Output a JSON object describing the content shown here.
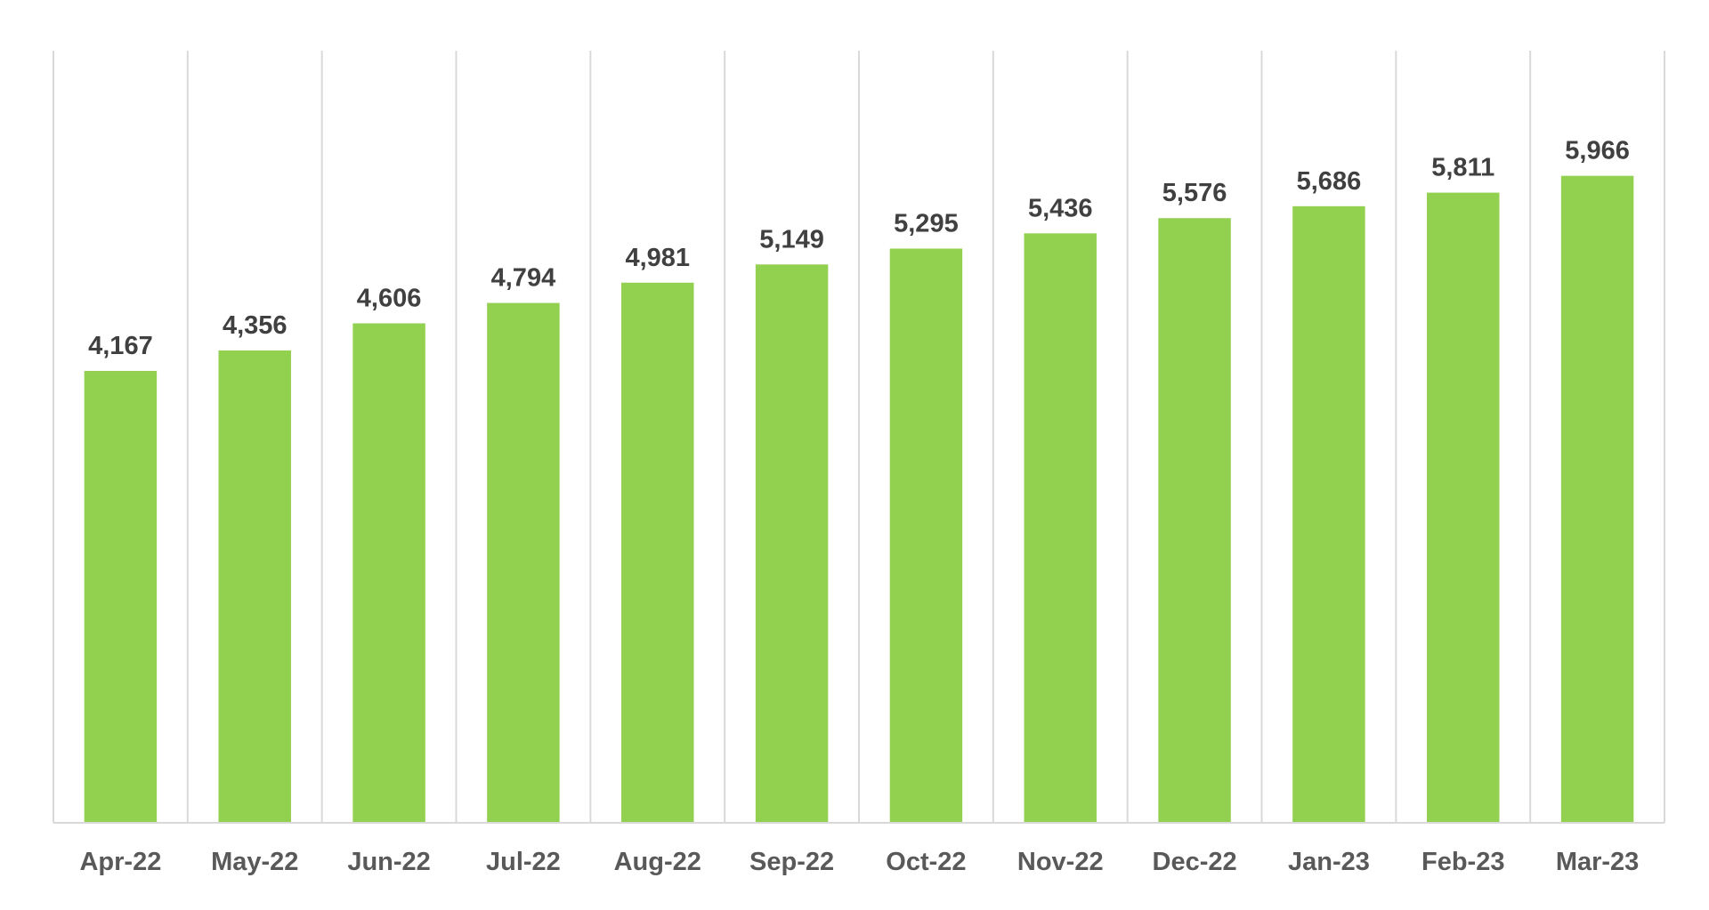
{
  "chart_data": {
    "type": "bar",
    "title": "",
    "xlabel": "",
    "ylabel": "",
    "categories": [
      "Apr-22",
      "May-22",
      "Jun-22",
      "Jul-22",
      "Aug-22",
      "Sep-22",
      "Oct-22",
      "Nov-22",
      "Dec-22",
      "Jan-23",
      "Feb-23",
      "Mar-23"
    ],
    "values": [
      4167,
      4356,
      4606,
      4794,
      4981,
      5149,
      5295,
      5436,
      5576,
      5686,
      5811,
      5966
    ],
    "data_labels": [
      "4,167",
      "4,356",
      "4,606",
      "4,794",
      "4,981",
      "5,149",
      "5,295",
      "5,436",
      "5,576",
      "5,686",
      "5,811",
      "5,966"
    ],
    "ylim": [
      0,
      7120
    ],
    "grid": "vertical",
    "legend": "none",
    "colors": {
      "bar": "#92D050",
      "grid": "#D9D9D9",
      "data_label": "#404040",
      "tick_label": "#595959"
    }
  }
}
